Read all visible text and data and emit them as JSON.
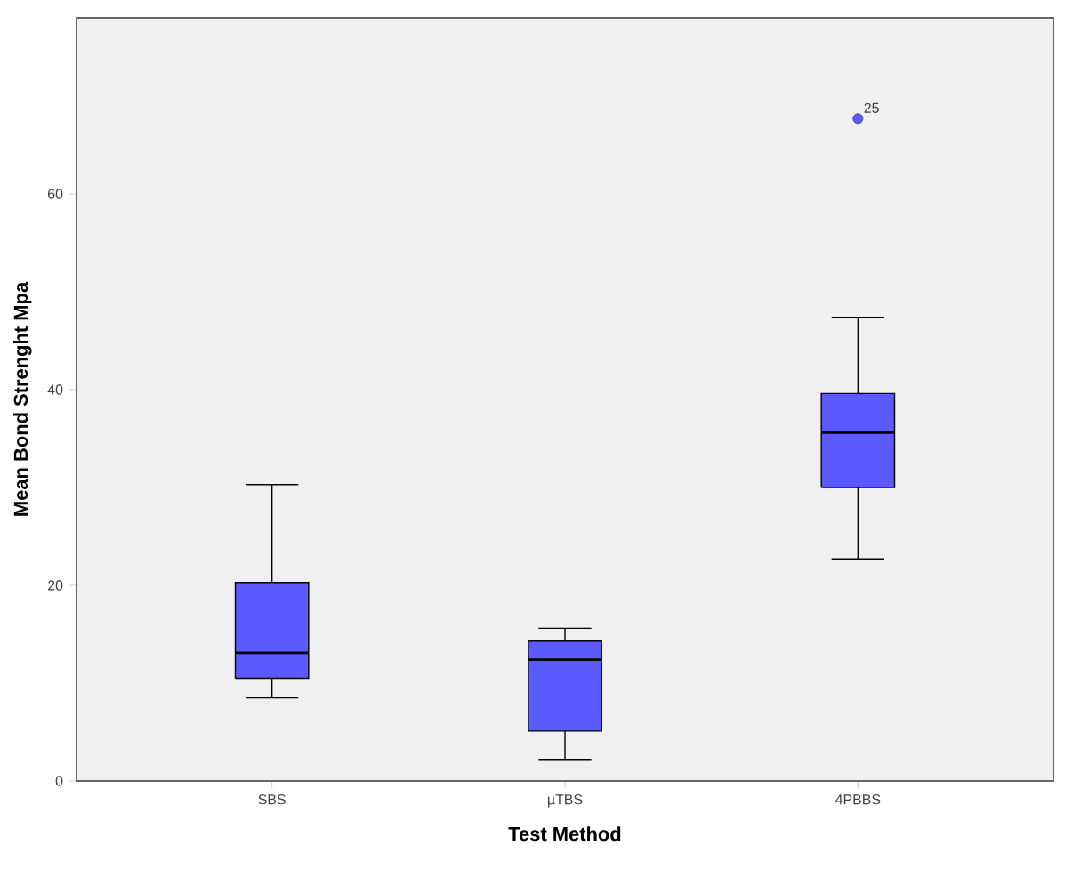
{
  "chart_data": {
    "type": "box",
    "xlabel": "Test Method",
    "ylabel": "Mean Bond Strenght Mpa",
    "categories": [
      "SBS",
      "µTBS",
      "4PBBS"
    ],
    "color": "#5a5aff",
    "boxes": [
      {
        "low": 8.5,
        "q1": 10.5,
        "median": 13.1,
        "q3": 20.3,
        "high": 30.3
      },
      {
        "low": 2.2,
        "q1": 5.1,
        "median": 12.4,
        "q3": 14.3,
        "high": 15.6
      },
      {
        "low": 22.7,
        "q1": 30.0,
        "median": 35.6,
        "q3": 39.6,
        "high": 47.4,
        "outliers": [
          67.7
        ]
      }
    ],
    "ylim": [
      0,
      78
    ],
    "yticks": [
      0,
      20,
      40,
      60
    ],
    "annotations": [
      "25"
    ]
  }
}
